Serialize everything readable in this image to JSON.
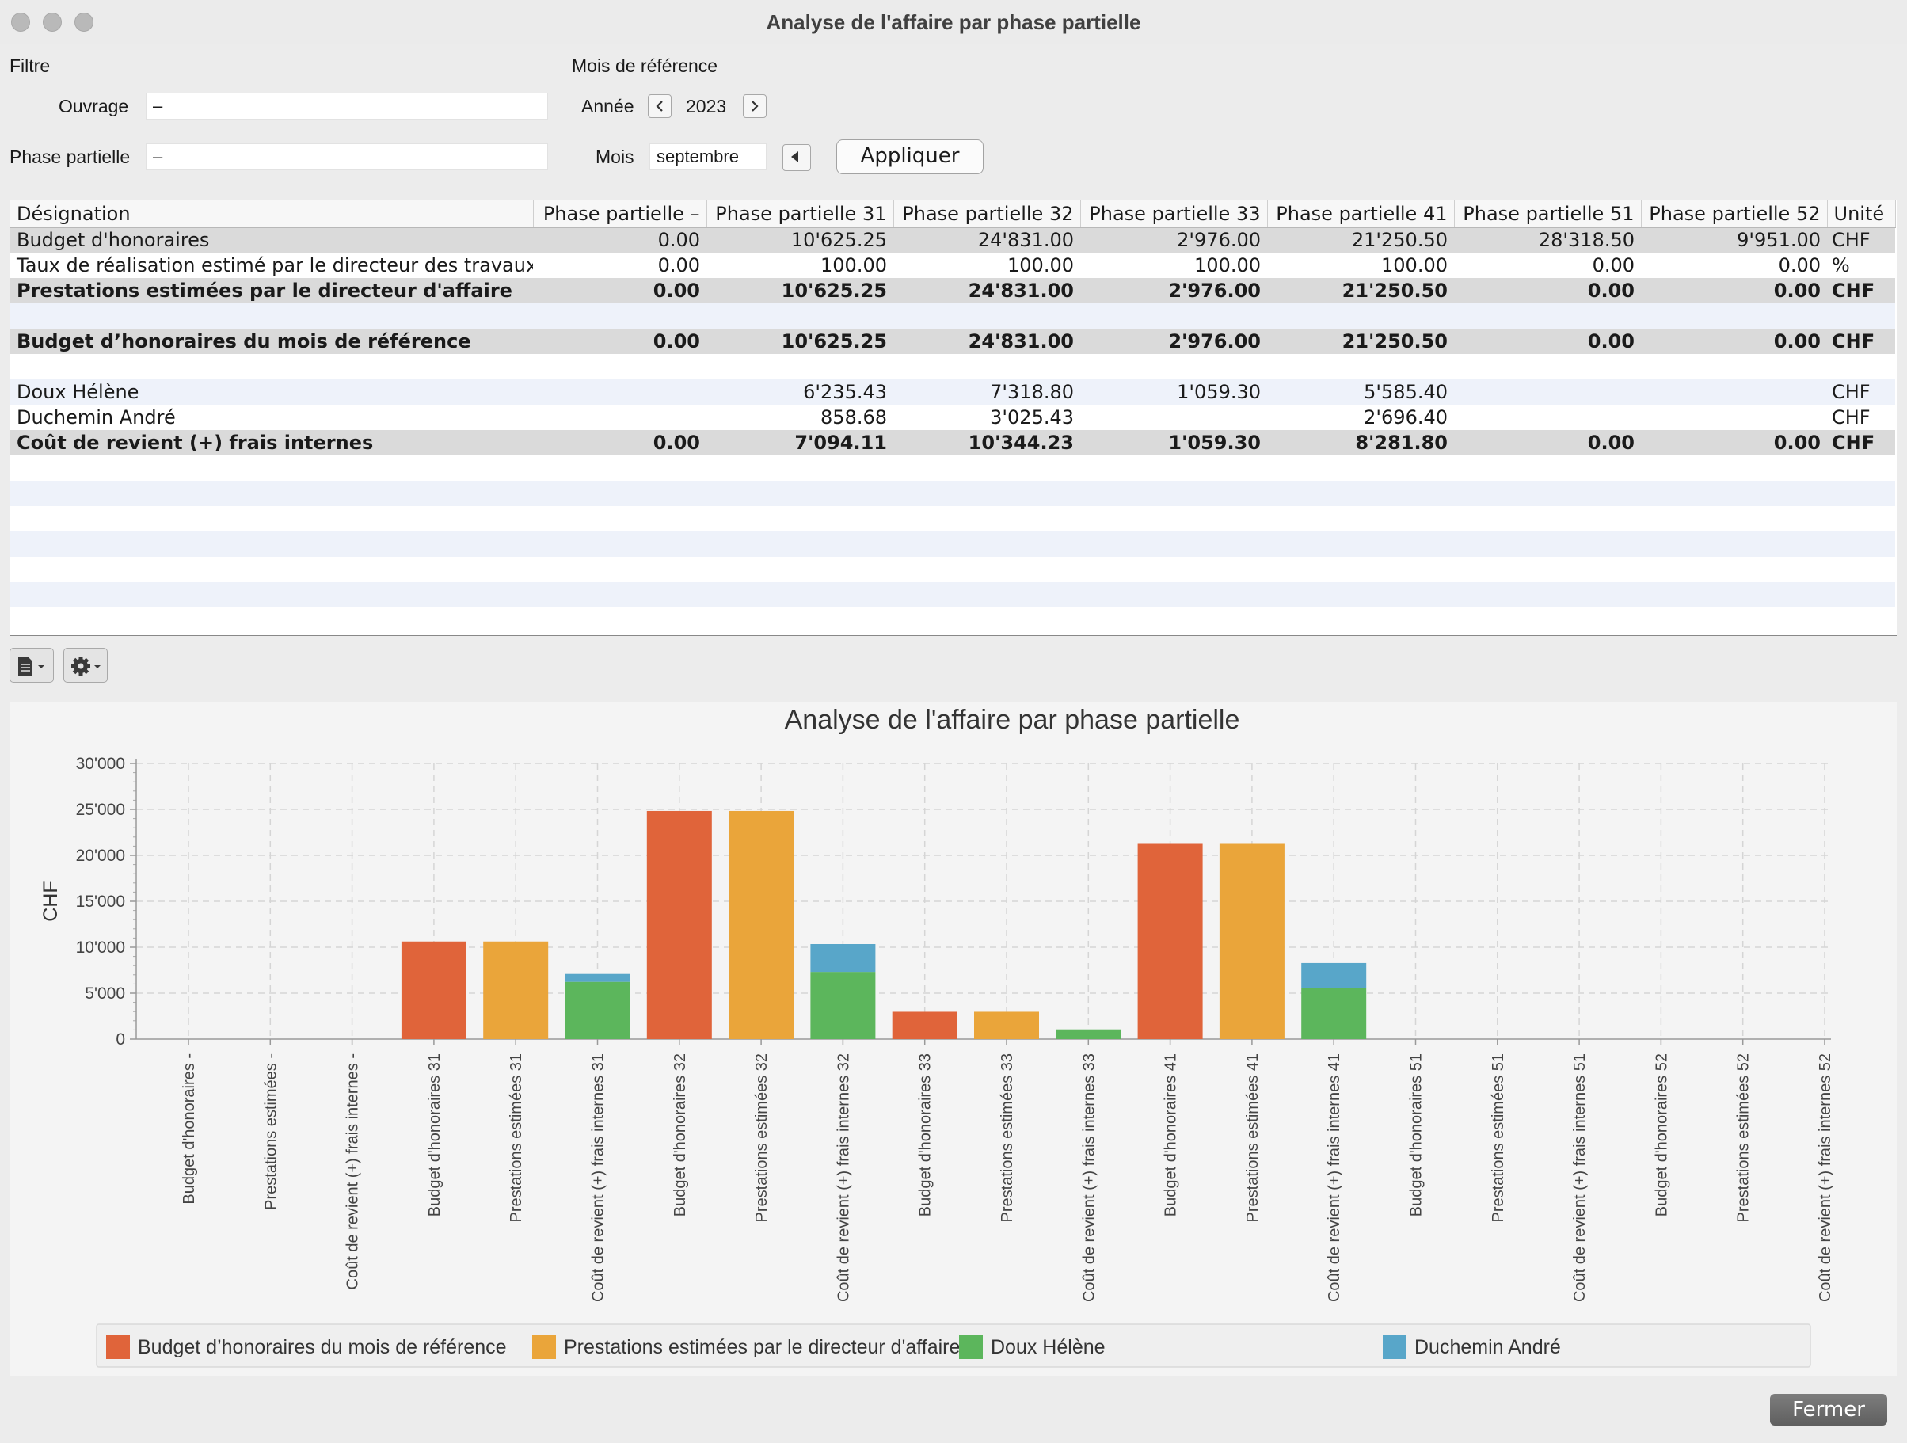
{
  "window": {
    "title": "Analyse de l'affaire par phase partielle"
  },
  "filter": {
    "section_label": "Filtre",
    "ouvrage_label": "Ouvrage",
    "ouvrage_value": "–",
    "phase_label": "Phase partielle",
    "phase_value": "–"
  },
  "reference": {
    "section_label": "Mois de référence",
    "year_label": "Année",
    "year_value": "2023",
    "month_label": "Mois",
    "month_value": "septembre",
    "apply_label": "Appliquer"
  },
  "table": {
    "headers": [
      "Désignation",
      "Phase partielle –",
      "Phase partielle 31",
      "Phase partielle 32",
      "Phase partielle 33",
      "Phase partielle 41",
      "Phase partielle 51",
      "Phase partielle 52",
      "Unité"
    ],
    "rows": [
      {
        "cells": [
          "Budget d'honoraires",
          "0.00",
          "10'625.25",
          "24'831.00",
          "2'976.00",
          "21'250.50",
          "28'318.50",
          "9'951.00",
          "CHF"
        ]
      },
      {
        "cells": [
          "Taux de réalisation estimé par le directeur des travaux",
          "0.00",
          "100.00",
          "100.00",
          "100.00",
          "100.00",
          "0.00",
          "0.00",
          "%"
        ]
      },
      {
        "cells": [
          "Prestations estimées par le directeur d'affaire",
          "0.00",
          "10'625.25",
          "24'831.00",
          "2'976.00",
          "21'250.50",
          "0.00",
          "0.00",
          "CHF"
        ]
      },
      {
        "cells": [
          "",
          "",
          "",
          "",
          "",
          "",
          "",
          "",
          ""
        ]
      },
      {
        "cells": [
          "Budget d’honoraires du mois de référence",
          "0.00",
          "10'625.25",
          "24'831.00",
          "2'976.00",
          "21'250.50",
          "0.00",
          "0.00",
          "CHF"
        ]
      },
      {
        "cells": [
          "",
          "",
          "",
          "",
          "",
          "",
          "",
          "",
          ""
        ]
      },
      {
        "cells": [
          "Doux Hélène",
          "",
          "6'235.43",
          "7'318.80",
          "1'059.30",
          "5'585.40",
          "",
          "",
          "CHF"
        ]
      },
      {
        "cells": [
          "Duchemin André",
          "",
          "858.68",
          "3'025.43",
          "",
          "2'696.40",
          "",
          "",
          "CHF"
        ]
      },
      {
        "cells": [
          "Coût de revient (+) frais internes",
          "0.00",
          "7'094.11",
          "10'344.23",
          "1'059.30",
          "8'281.80",
          "0.00",
          "0.00",
          "CHF"
        ]
      }
    ]
  },
  "toolbar": {
    "document_icon": "document-icon",
    "settings_icon": "gear-icon"
  },
  "chart_data": {
    "type": "bar",
    "title": "Analyse de l'affaire par phase partielle",
    "ylabel": "CHF",
    "ylim": [
      0,
      30000
    ],
    "yticks": [
      "0",
      "5'000",
      "10'000",
      "15'000",
      "20'000",
      "25'000",
      "30'000"
    ],
    "grid": true,
    "stacked": true,
    "legend_position": "bottom",
    "categories": [
      "Budget d'honoraires -",
      "Prestations estimées -",
      "Coût de revient (+) frais internes -",
      "Budget d'honoraires 31",
      "Prestations estimées 31",
      "Coût de revient (+) frais internes 31",
      "Budget d'honoraires 32",
      "Prestations estimées 32",
      "Coût de revient (+) frais internes 32",
      "Budget d'honoraires 33",
      "Prestations estimées 33",
      "Coût de revient (+) frais internes 33",
      "Budget d'honoraires 41",
      "Prestations estimées 41",
      "Coût de revient (+) frais internes 41",
      "Budget d'honoraires 51",
      "Prestations estimées 51",
      "Coût de revient (+) frais internes 51",
      "Budget d'honoraires 52",
      "Prestations estimées 52",
      "Coût de revient (+) frais internes 52"
    ],
    "series": [
      {
        "name": "Budget d’honoraires du mois de référence",
        "color": "#e0643a",
        "values": [
          0,
          0,
          0,
          10625.25,
          0,
          0,
          24831,
          0,
          0,
          2976,
          0,
          0,
          21250.5,
          0,
          0,
          0,
          0,
          0,
          0,
          0,
          0
        ]
      },
      {
        "name": "Prestations estimées par le directeur d'affaire",
        "color": "#eaa53a",
        "values": [
          0,
          0,
          0,
          0,
          10625.25,
          0,
          0,
          24831,
          0,
          0,
          2976,
          0,
          0,
          21250.5,
          0,
          0,
          0,
          0,
          0,
          0,
          0
        ]
      },
      {
        "name": "Doux Hélène",
        "color": "#5cb65c",
        "values": [
          0,
          0,
          0,
          0,
          0,
          6235.43,
          0,
          0,
          7318.8,
          0,
          0,
          1059.3,
          0,
          0,
          5585.4,
          0,
          0,
          0,
          0,
          0,
          0
        ]
      },
      {
        "name": "Duchemin André",
        "color": "#58a6c9",
        "values": [
          0,
          0,
          0,
          0,
          0,
          858.68,
          0,
          0,
          3025.43,
          0,
          0,
          0,
          0,
          0,
          2696.4,
          0,
          0,
          0,
          0,
          0,
          0
        ]
      }
    ]
  },
  "footer": {
    "close_label": "Fermer"
  }
}
